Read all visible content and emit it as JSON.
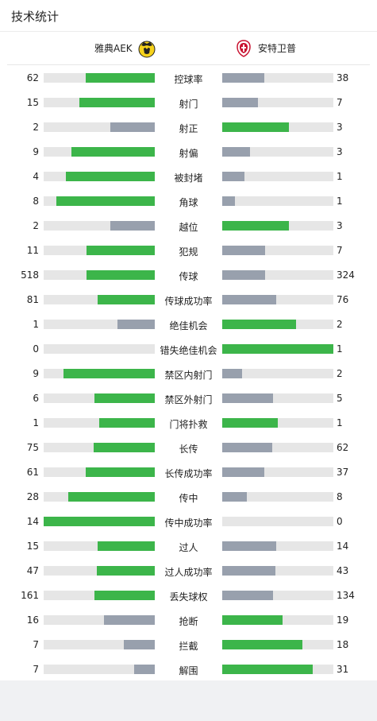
{
  "header": {
    "title": "技术统计"
  },
  "teams": {
    "home": {
      "name": "雅典AEK",
      "logo": "aek-crest-icon"
    },
    "away": {
      "name": "安特卫普",
      "logo": "antwerp-crest-icon"
    }
  },
  "colors": {
    "win": "#3cb54a",
    "lose": "#98a0ad",
    "track": "#e6e6e6"
  },
  "stats": [
    {
      "label": "控球率",
      "home": 62,
      "away": 38
    },
    {
      "label": "射门",
      "home": 15,
      "away": 7
    },
    {
      "label": "射正",
      "home": 2,
      "away": 3
    },
    {
      "label": "射偏",
      "home": 9,
      "away": 3
    },
    {
      "label": "被封堵",
      "home": 4,
      "away": 1
    },
    {
      "label": "角球",
      "home": 8,
      "away": 1
    },
    {
      "label": "越位",
      "home": 2,
      "away": 3
    },
    {
      "label": "犯规",
      "home": 11,
      "away": 7
    },
    {
      "label": "传球",
      "home": 518,
      "away": 324
    },
    {
      "label": "传球成功率",
      "home": 81,
      "away": 76
    },
    {
      "label": "绝佳机会",
      "home": 1,
      "away": 2
    },
    {
      "label": "错失绝佳机会",
      "home": 0,
      "away": 1
    },
    {
      "label": "禁区内射门",
      "home": 9,
      "away": 2
    },
    {
      "label": "禁区外射门",
      "home": 6,
      "away": 5
    },
    {
      "label": "门将扑救",
      "home": 1,
      "away": 1
    },
    {
      "label": "长传",
      "home": 75,
      "away": 62
    },
    {
      "label": "长传成功率",
      "home": 61,
      "away": 37
    },
    {
      "label": "传中",
      "home": 28,
      "away": 8
    },
    {
      "label": "传中成功率",
      "home": 14,
      "away": 0
    },
    {
      "label": "过人",
      "home": 15,
      "away": 14
    },
    {
      "label": "过人成功率",
      "home": 47,
      "away": 43
    },
    {
      "label": "丢失球权",
      "home": 161,
      "away": 134
    },
    {
      "label": "抢断",
      "home": 16,
      "away": 19
    },
    {
      "label": "拦截",
      "home": 7,
      "away": 18
    },
    {
      "label": "解围",
      "home": 7,
      "away": 31
    }
  ]
}
